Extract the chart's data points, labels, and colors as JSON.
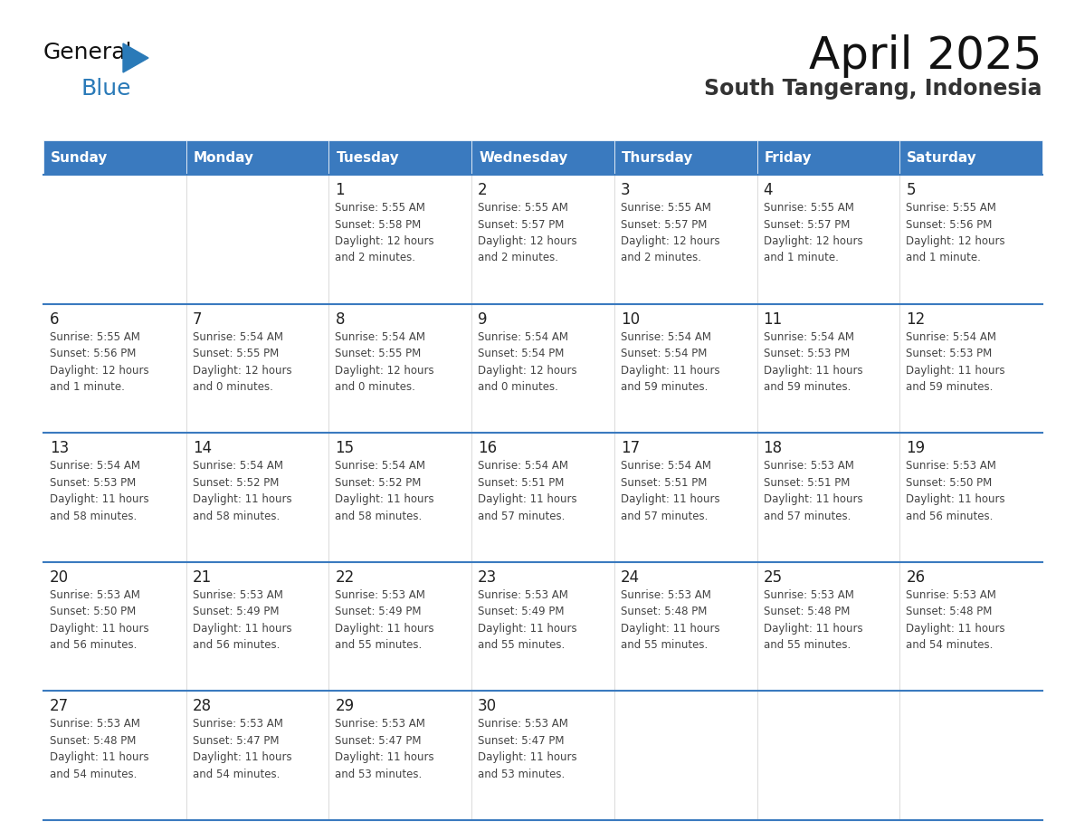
{
  "title": "April 2025",
  "subtitle": "South Tangerang, Indonesia",
  "header_bg_color": "#3a7abf",
  "header_text_color": "#ffffff",
  "days_of_week": [
    "Sunday",
    "Monday",
    "Tuesday",
    "Wednesday",
    "Thursday",
    "Friday",
    "Saturday"
  ],
  "row_bg_color": "#ffffff",
  "row_alt_bg_color": "#f5f5f5",
  "grid_line_color": "#3a7abf",
  "cell_border_color": "#cccccc",
  "text_color": "#444444",
  "day_number_color": "#222222",
  "logo_general_color": "#111111",
  "logo_blue_color": "#2a7ab8",
  "logo_triangle_color": "#2a7ab8",
  "calendar_data": [
    [
      {
        "day": null,
        "sunrise": null,
        "sunset": null,
        "daylight": null
      },
      {
        "day": null,
        "sunrise": null,
        "sunset": null,
        "daylight": null
      },
      {
        "day": 1,
        "sunrise": "5:55 AM",
        "sunset": "5:58 PM",
        "daylight": "12 hours\nand 2 minutes."
      },
      {
        "day": 2,
        "sunrise": "5:55 AM",
        "sunset": "5:57 PM",
        "daylight": "12 hours\nand 2 minutes."
      },
      {
        "day": 3,
        "sunrise": "5:55 AM",
        "sunset": "5:57 PM",
        "daylight": "12 hours\nand 2 minutes."
      },
      {
        "day": 4,
        "sunrise": "5:55 AM",
        "sunset": "5:57 PM",
        "daylight": "12 hours\nand 1 minute."
      },
      {
        "day": 5,
        "sunrise": "5:55 AM",
        "sunset": "5:56 PM",
        "daylight": "12 hours\nand 1 minute."
      }
    ],
    [
      {
        "day": 6,
        "sunrise": "5:55 AM",
        "sunset": "5:56 PM",
        "daylight": "12 hours\nand 1 minute."
      },
      {
        "day": 7,
        "sunrise": "5:54 AM",
        "sunset": "5:55 PM",
        "daylight": "12 hours\nand 0 minutes."
      },
      {
        "day": 8,
        "sunrise": "5:54 AM",
        "sunset": "5:55 PM",
        "daylight": "12 hours\nand 0 minutes."
      },
      {
        "day": 9,
        "sunrise": "5:54 AM",
        "sunset": "5:54 PM",
        "daylight": "12 hours\nand 0 minutes."
      },
      {
        "day": 10,
        "sunrise": "5:54 AM",
        "sunset": "5:54 PM",
        "daylight": "11 hours\nand 59 minutes."
      },
      {
        "day": 11,
        "sunrise": "5:54 AM",
        "sunset": "5:53 PM",
        "daylight": "11 hours\nand 59 minutes."
      },
      {
        "day": 12,
        "sunrise": "5:54 AM",
        "sunset": "5:53 PM",
        "daylight": "11 hours\nand 59 minutes."
      }
    ],
    [
      {
        "day": 13,
        "sunrise": "5:54 AM",
        "sunset": "5:53 PM",
        "daylight": "11 hours\nand 58 minutes."
      },
      {
        "day": 14,
        "sunrise": "5:54 AM",
        "sunset": "5:52 PM",
        "daylight": "11 hours\nand 58 minutes."
      },
      {
        "day": 15,
        "sunrise": "5:54 AM",
        "sunset": "5:52 PM",
        "daylight": "11 hours\nand 58 minutes."
      },
      {
        "day": 16,
        "sunrise": "5:54 AM",
        "sunset": "5:51 PM",
        "daylight": "11 hours\nand 57 minutes."
      },
      {
        "day": 17,
        "sunrise": "5:54 AM",
        "sunset": "5:51 PM",
        "daylight": "11 hours\nand 57 minutes."
      },
      {
        "day": 18,
        "sunrise": "5:53 AM",
        "sunset": "5:51 PM",
        "daylight": "11 hours\nand 57 minutes."
      },
      {
        "day": 19,
        "sunrise": "5:53 AM",
        "sunset": "5:50 PM",
        "daylight": "11 hours\nand 56 minutes."
      }
    ],
    [
      {
        "day": 20,
        "sunrise": "5:53 AM",
        "sunset": "5:50 PM",
        "daylight": "11 hours\nand 56 minutes."
      },
      {
        "day": 21,
        "sunrise": "5:53 AM",
        "sunset": "5:49 PM",
        "daylight": "11 hours\nand 56 minutes."
      },
      {
        "day": 22,
        "sunrise": "5:53 AM",
        "sunset": "5:49 PM",
        "daylight": "11 hours\nand 55 minutes."
      },
      {
        "day": 23,
        "sunrise": "5:53 AM",
        "sunset": "5:49 PM",
        "daylight": "11 hours\nand 55 minutes."
      },
      {
        "day": 24,
        "sunrise": "5:53 AM",
        "sunset": "5:48 PM",
        "daylight": "11 hours\nand 55 minutes."
      },
      {
        "day": 25,
        "sunrise": "5:53 AM",
        "sunset": "5:48 PM",
        "daylight": "11 hours\nand 55 minutes."
      },
      {
        "day": 26,
        "sunrise": "5:53 AM",
        "sunset": "5:48 PM",
        "daylight": "11 hours\nand 54 minutes."
      }
    ],
    [
      {
        "day": 27,
        "sunrise": "5:53 AM",
        "sunset": "5:48 PM",
        "daylight": "11 hours\nand 54 minutes."
      },
      {
        "day": 28,
        "sunrise": "5:53 AM",
        "sunset": "5:47 PM",
        "daylight": "11 hours\nand 54 minutes."
      },
      {
        "day": 29,
        "sunrise": "5:53 AM",
        "sunset": "5:47 PM",
        "daylight": "11 hours\nand 53 minutes."
      },
      {
        "day": 30,
        "sunrise": "5:53 AM",
        "sunset": "5:47 PM",
        "daylight": "11 hours\nand 53 minutes."
      },
      {
        "day": null,
        "sunrise": null,
        "sunset": null,
        "daylight": null
      },
      {
        "day": null,
        "sunrise": null,
        "sunset": null,
        "daylight": null
      },
      {
        "day": null,
        "sunrise": null,
        "sunset": null,
        "daylight": null
      }
    ]
  ]
}
